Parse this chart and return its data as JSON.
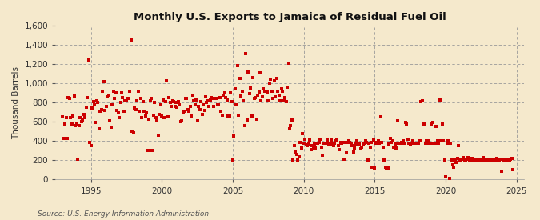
{
  "title": "Monthly U.S. Exports to Jamaica of Residual Fuel Oil",
  "ylabel": "Thousand Barrels",
  "source": "Source: U.S. Energy Information Administration",
  "background_color": "#f5e9cc",
  "marker_color": "#cc0000",
  "marker_size": 5,
  "xlim": [
    1992.5,
    2025.5
  ],
  "ylim": [
    0,
    1600
  ],
  "yticks": [
    0,
    200,
    400,
    600,
    800,
    1000,
    1200,
    1400,
    1600
  ],
  "xticks": [
    1995,
    2000,
    2005,
    2010,
    2015,
    2020,
    2025
  ],
  "data": {
    "dates": [
      1993.0,
      1993.083,
      1993.167,
      1993.25,
      1993.333,
      1993.417,
      1993.5,
      1993.583,
      1993.667,
      1993.75,
      1993.833,
      1993.917,
      1994.0,
      1994.083,
      1994.167,
      1994.25,
      1994.333,
      1994.417,
      1994.5,
      1994.583,
      1994.667,
      1994.75,
      1994.833,
      1994.917,
      1995.0,
      1995.083,
      1995.167,
      1995.25,
      1995.333,
      1995.417,
      1995.5,
      1995.583,
      1995.667,
      1995.75,
      1995.833,
      1995.917,
      1996.0,
      1996.083,
      1996.167,
      1996.25,
      1996.333,
      1996.417,
      1996.5,
      1996.583,
      1996.667,
      1996.75,
      1996.833,
      1996.917,
      1997.0,
      1997.083,
      1997.167,
      1997.25,
      1997.333,
      1997.417,
      1997.5,
      1997.583,
      1997.667,
      1997.75,
      1997.833,
      1997.917,
      1998.0,
      1998.083,
      1998.167,
      1998.25,
      1998.333,
      1998.417,
      1998.5,
      1998.583,
      1998.667,
      1998.75,
      1998.833,
      1998.917,
      1999.0,
      1999.083,
      1999.167,
      1999.25,
      1999.333,
      1999.417,
      1999.5,
      1999.583,
      1999.667,
      1999.75,
      1999.833,
      1999.917,
      2000.0,
      2000.083,
      2000.167,
      2000.25,
      2000.333,
      2000.417,
      2000.5,
      2000.583,
      2000.667,
      2000.75,
      2000.833,
      2000.917,
      2001.0,
      2001.083,
      2001.167,
      2001.25,
      2001.333,
      2001.417,
      2001.5,
      2001.583,
      2001.667,
      2001.75,
      2001.833,
      2001.917,
      2002.0,
      2002.083,
      2002.167,
      2002.25,
      2002.333,
      2002.417,
      2002.5,
      2002.583,
      2002.667,
      2002.75,
      2002.833,
      2002.917,
      2003.0,
      2003.083,
      2003.167,
      2003.25,
      2003.333,
      2003.417,
      2003.5,
      2003.583,
      2003.667,
      2003.75,
      2003.833,
      2003.917,
      2004.0,
      2004.083,
      2004.167,
      2004.25,
      2004.333,
      2004.417,
      2004.5,
      2004.583,
      2004.667,
      2004.75,
      2004.833,
      2004.917,
      2005.0,
      2005.083,
      2005.167,
      2005.25,
      2005.333,
      2005.417,
      2005.5,
      2005.583,
      2005.667,
      2005.75,
      2005.833,
      2005.917,
      2006.0,
      2006.083,
      2006.167,
      2006.25,
      2006.333,
      2006.417,
      2006.5,
      2006.583,
      2006.667,
      2006.75,
      2006.833,
      2006.917,
      2007.0,
      2007.083,
      2007.167,
      2007.25,
      2007.333,
      2007.417,
      2007.5,
      2007.583,
      2007.667,
      2007.75,
      2007.833,
      2007.917,
      2008.0,
      2008.083,
      2008.167,
      2008.25,
      2008.333,
      2008.417,
      2008.5,
      2008.583,
      2008.667,
      2008.75,
      2008.833,
      2008.917,
      2009.0,
      2009.083,
      2009.167,
      2009.25,
      2009.333,
      2009.417,
      2009.5,
      2009.583,
      2009.667,
      2009.75,
      2009.833,
      2009.917,
      2010.0,
      2010.083,
      2010.167,
      2010.25,
      2010.333,
      2010.417,
      2010.5,
      2010.583,
      2010.667,
      2010.75,
      2010.833,
      2010.917,
      2011.0,
      2011.083,
      2011.167,
      2011.25,
      2011.333,
      2011.417,
      2011.5,
      2011.583,
      2011.667,
      2011.75,
      2011.833,
      2011.917,
      2012.0,
      2012.083,
      2012.167,
      2012.25,
      2012.333,
      2012.417,
      2012.5,
      2012.583,
      2012.667,
      2012.75,
      2012.833,
      2012.917,
      2013.0,
      2013.083,
      2013.167,
      2013.25,
      2013.333,
      2013.417,
      2013.5,
      2013.583,
      2013.667,
      2013.75,
      2013.833,
      2013.917,
      2014.0,
      2014.083,
      2014.167,
      2014.25,
      2014.333,
      2014.417,
      2014.5,
      2014.583,
      2014.667,
      2014.75,
      2014.833,
      2014.917,
      2015.0,
      2015.083,
      2015.167,
      2015.25,
      2015.333,
      2015.417,
      2015.5,
      2015.583,
      2015.667,
      2015.75,
      2015.833,
      2015.917,
      2016.0,
      2016.083,
      2016.167,
      2016.25,
      2016.333,
      2016.417,
      2016.5,
      2016.583,
      2016.667,
      2016.75,
      2016.833,
      2016.917,
      2017.0,
      2017.083,
      2017.167,
      2017.25,
      2017.333,
      2017.417,
      2017.5,
      2017.583,
      2017.667,
      2017.75,
      2017.833,
      2017.917,
      2018.0,
      2018.083,
      2018.167,
      2018.25,
      2018.333,
      2018.417,
      2018.5,
      2018.583,
      2018.667,
      2018.75,
      2018.833,
      2018.917,
      2019.0,
      2019.083,
      2019.167,
      2019.25,
      2019.333,
      2019.417,
      2019.5,
      2019.583,
      2019.667,
      2019.75,
      2019.833,
      2019.917,
      2020.0,
      2020.083,
      2020.167,
      2020.25,
      2020.333,
      2020.417,
      2020.5,
      2020.583,
      2020.667,
      2020.75,
      2020.833,
      2020.917,
      2021.0,
      2021.083,
      2021.167,
      2021.25,
      2021.333,
      2021.417,
      2021.5,
      2021.583,
      2021.667,
      2021.75,
      2021.833,
      2021.917,
      2022.0,
      2022.083,
      2022.167,
      2022.25,
      2022.333,
      2022.417,
      2022.5,
      2022.583,
      2022.667,
      2022.75,
      2022.833,
      2022.917,
      2023.0,
      2023.083,
      2023.167,
      2023.25,
      2023.333,
      2023.417,
      2023.5,
      2023.583,
      2023.667,
      2023.75,
      2023.833,
      2023.917,
      2024.0,
      2024.083,
      2024.167,
      2024.25,
      2024.333,
      2024.417,
      2024.5,
      2024.583,
      2024.667,
      2024.75
    ],
    "values": [
      650,
      430,
      580,
      640,
      430,
      850,
      840,
      640,
      580,
      660,
      870,
      560,
      580,
      210,
      560,
      640,
      600,
      620,
      680,
      640,
      750,
      850,
      1240,
      390,
      350,
      740,
      810,
      780,
      590,
      820,
      800,
      530,
      710,
      730,
      920,
      1020,
      720,
      760,
      860,
      880,
      610,
      540,
      780,
      920,
      840,
      900,
      720,
      690,
      640,
      800,
      900,
      850,
      710,
      820,
      820,
      840,
      840,
      920,
      1450,
      500,
      490,
      740,
      730,
      820,
      920,
      710,
      840,
      640,
      810,
      710,
      660,
      690,
      300,
      630,
      820,
      840,
      300,
      670,
      800,
      640,
      620,
      460,
      680,
      780,
      660,
      830,
      640,
      810,
      1030,
      650,
      850,
      800,
      760,
      820,
      810,
      760,
      800,
      750,
      810,
      780,
      600,
      610,
      700,
      710,
      840,
      840,
      730,
      710,
      760,
      660,
      880,
      820,
      780,
      830,
      610,
      760,
      730,
      810,
      680,
      780,
      720,
      860,
      800,
      820,
      760,
      830,
      850,
      840,
      760,
      840,
      840,
      780,
      780,
      850,
      710,
      670,
      880,
      900,
      850,
      830,
      660,
      660,
      900,
      810,
      200,
      450,
      940,
      780,
      1180,
      670,
      1050,
      870,
      920,
      820,
      560,
      1310,
      620,
      1120,
      890,
      950,
      660,
      1060,
      840,
      850,
      630,
      880,
      910,
      1110,
      820,
      860,
      940,
      920,
      920,
      910,
      820,
      1000,
      1040,
      920,
      840,
      1030,
      860,
      1050,
      920,
      880,
      820,
      940,
      920,
      820,
      850,
      810,
      960,
      1210,
      530,
      560,
      620,
      200,
      350,
      290,
      260,
      200,
      240,
      390,
      330,
      480,
      380,
      420,
      360,
      350,
      370,
      410,
      310,
      350,
      330,
      370,
      330,
      380,
      380,
      390,
      420,
      340,
      250,
      380,
      380,
      380,
      410,
      370,
      380,
      410,
      370,
      350,
      380,
      400,
      410,
      350,
      310,
      390,
      380,
      390,
      210,
      390,
      280,
      390,
      400,
      390,
      380,
      350,
      290,
      330,
      370,
      400,
      380,
      370,
      320,
      340,
      360,
      380,
      400,
      390,
      200,
      380,
      340,
      390,
      130,
      410,
      120,
      380,
      390,
      400,
      380,
      650,
      390,
      340,
      200,
      130,
      110,
      120,
      370,
      430,
      390,
      400,
      340,
      370,
      330,
      610,
      380,
      380,
      380,
      390,
      400,
      380,
      590,
      580,
      420,
      380,
      370,
      380,
      400,
      380,
      380,
      380,
      380,
      380,
      400,
      810,
      820,
      580,
      580,
      380,
      400,
      380,
      400,
      380,
      580,
      590,
      380,
      380,
      550,
      400,
      380,
      830,
      400,
      580,
      400,
      200,
      30,
      380,
      400,
      10,
      380,
      200,
      150,
      130,
      200,
      180,
      220,
      350,
      200,
      200,
      210,
      230,
      200,
      200,
      210,
      230,
      200,
      210,
      220,
      200,
      200,
      210,
      200,
      200,
      210,
      200,
      200,
      210,
      230,
      200,
      210,
      200,
      200,
      210,
      200,
      200,
      210,
      200,
      210,
      220,
      200,
      200,
      210,
      90,
      210,
      200,
      210,
      200,
      200,
      210,
      200,
      210,
      220,
      100
    ]
  }
}
